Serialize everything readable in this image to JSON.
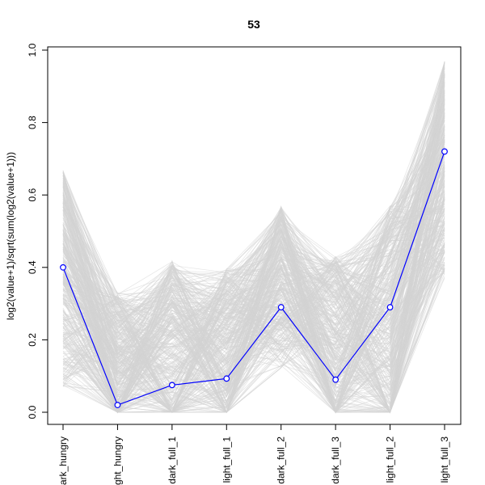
{
  "chart_data": {
    "type": "line",
    "title": "53",
    "xlabel": "",
    "ylabel": "log2(value+1)/sqrt(sum(log2(value+1)))",
    "ylim": [
      0,
      1.0
    ],
    "y_ticks": [
      "0.0",
      "0.2",
      "0.4",
      "0.6",
      "0.8",
      "1.0"
    ],
    "y_tick_values": [
      0.0,
      0.2,
      0.4,
      0.6,
      0.8,
      1.0
    ],
    "categories": [
      "dark_hungry",
      "light_hungry",
      "dark_full_1",
      "light_full_1",
      "dark_full_2",
      "dark_full_3",
      "light_full_2",
      "light_full_3"
    ],
    "category_labels_as_shown": [
      "ark_hungry",
      "ght_hungry",
      "dark_full_1",
      "light_full_1",
      "dark_full_2",
      "dark_full_3",
      "light_full_2",
      "light_full_3"
    ],
    "highlight_series": {
      "color": "#0000ff",
      "marker": "open-circle",
      "values": [
        0.4,
        0.02,
        0.075,
        0.093,
        0.29,
        0.09,
        0.29,
        0.72
      ]
    },
    "background_series": {
      "color": "#d3d3d3",
      "description_count": 400,
      "ranges": [
        [
          0.07,
          0.67
        ],
        [
          0.0,
          0.33
        ],
        [
          0.0,
          0.42
        ],
        [
          0.0,
          0.4
        ],
        [
          0.12,
          0.57
        ],
        [
          0.0,
          0.43
        ],
        [
          0.0,
          0.57
        ],
        [
          0.37,
          0.97
        ]
      ]
    },
    "grid": false,
    "legend": "none"
  }
}
